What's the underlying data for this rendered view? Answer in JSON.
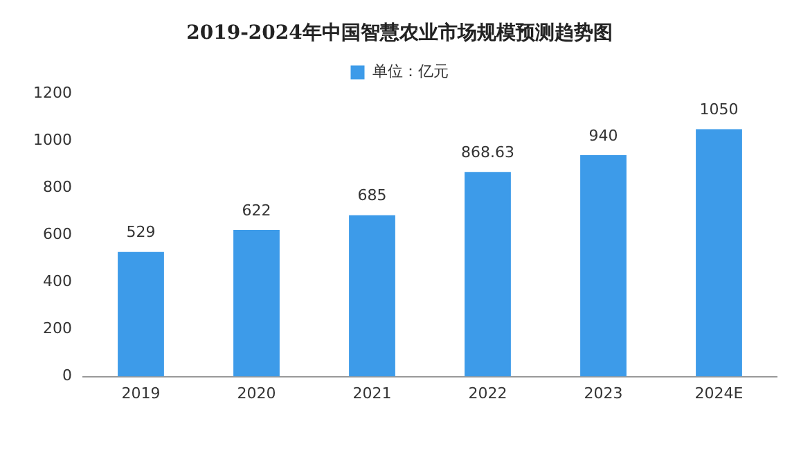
{
  "chart_data": {
    "type": "bar",
    "title": "2019-2024年中国智慧农业市场规模预测趋势图",
    "categories": [
      "2019",
      "2020",
      "2021",
      "2022",
      "2023",
      "2024E"
    ],
    "series": [
      {
        "name": "单位：亿元",
        "color": "#3d9be9",
        "values": [
          529,
          622,
          685,
          868.63,
          940,
          1050
        ]
      }
    ],
    "ylim": [
      0,
      1200
    ],
    "yticks": [
      0,
      200,
      400,
      600,
      800,
      1000,
      1200
    ],
    "grid": false,
    "legend": "top",
    "data_labels": true
  }
}
